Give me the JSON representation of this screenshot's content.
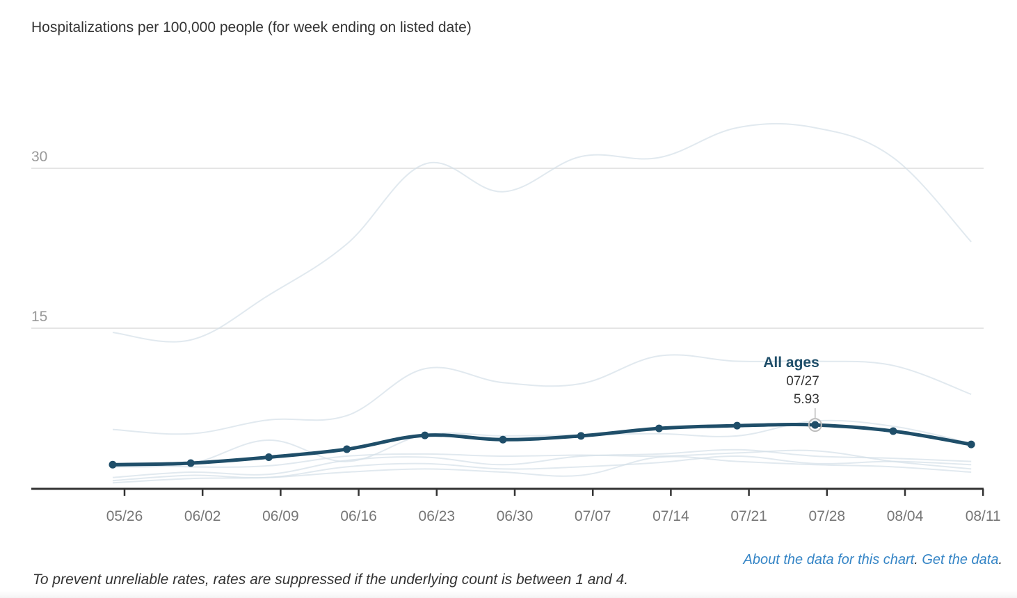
{
  "chart_data": {
    "type": "line",
    "title": "Hospitalizations per 100,000 people (for week ending on listed date)",
    "xlabel": "",
    "ylabel": "",
    "ylim": [
      0,
      33
    ],
    "yticks": [
      "15",
      "30"
    ],
    "ytick_values": [
      15,
      30
    ],
    "xtick_labels": [
      "05/26",
      "06/02",
      "06/09",
      "06/16",
      "06/23",
      "06/30",
      "07/07",
      "07/14",
      "07/21",
      "07/28",
      "08/04",
      "08/11"
    ],
    "x": [
      "05/25",
      "06/01",
      "06/08",
      "06/15",
      "06/22",
      "06/29",
      "07/06",
      "07/13",
      "07/20",
      "07/27",
      "08/03",
      "08/10"
    ],
    "grid": true,
    "highlight_series": {
      "name": "All ages",
      "color": "#1f4e69",
      "values": [
        2.2,
        2.35,
        2.9,
        3.65,
        4.95,
        4.55,
        4.9,
        5.6,
        5.86,
        5.93,
        5.35,
        4.1
      ]
    },
    "background_series_color": "#d4e0e8",
    "background_series": [
      {
        "values": [
          14.6,
          13.9,
          18.1,
          22.9,
          30.4,
          27.8,
          31.1,
          31.0,
          33.8,
          33.8,
          31.0,
          23.1
        ]
      },
      {
        "values": [
          5.5,
          5.1,
          6.4,
          6.8,
          11.2,
          9.9,
          9.8,
          12.4,
          11.9,
          11.9,
          11.5,
          8.8
        ]
      },
      {
        "values": [
          2.0,
          2.3,
          4.5,
          2.5,
          5.0,
          4.9,
          5.0,
          5.1,
          4.9,
          6.3,
          5.8,
          4.2
        ]
      },
      {
        "values": [
          2.3,
          2.0,
          2.1,
          3.0,
          3.2,
          3.0,
          3.1,
          3.0,
          3.3,
          3.5,
          2.5,
          1.8
        ]
      },
      {
        "values": [
          1.0,
          1.5,
          1.3,
          2.6,
          2.9,
          2.2,
          3.0,
          3.2,
          3.6,
          3.0,
          2.8,
          2.5
        ]
      },
      {
        "values": [
          0.7,
          1.2,
          1.0,
          2.0,
          2.3,
          1.8,
          2.0,
          2.4,
          3.0,
          2.3,
          2.5,
          2.2
        ]
      },
      {
        "values": [
          0.5,
          0.9,
          1.0,
          1.5,
          1.8,
          1.5,
          1.2,
          2.9,
          2.5,
          2.2,
          2.0,
          1.5
        ]
      }
    ],
    "tooltip": {
      "series": "All ages",
      "date": "07/27",
      "value": "5.93"
    }
  },
  "links": {
    "about": "About the data for this chart",
    "sep": ". ",
    "get": "Get the data",
    "end": "."
  },
  "footnote": "To prevent unreliable rates, rates are suppressed if the underlying count is between 1 and 4."
}
